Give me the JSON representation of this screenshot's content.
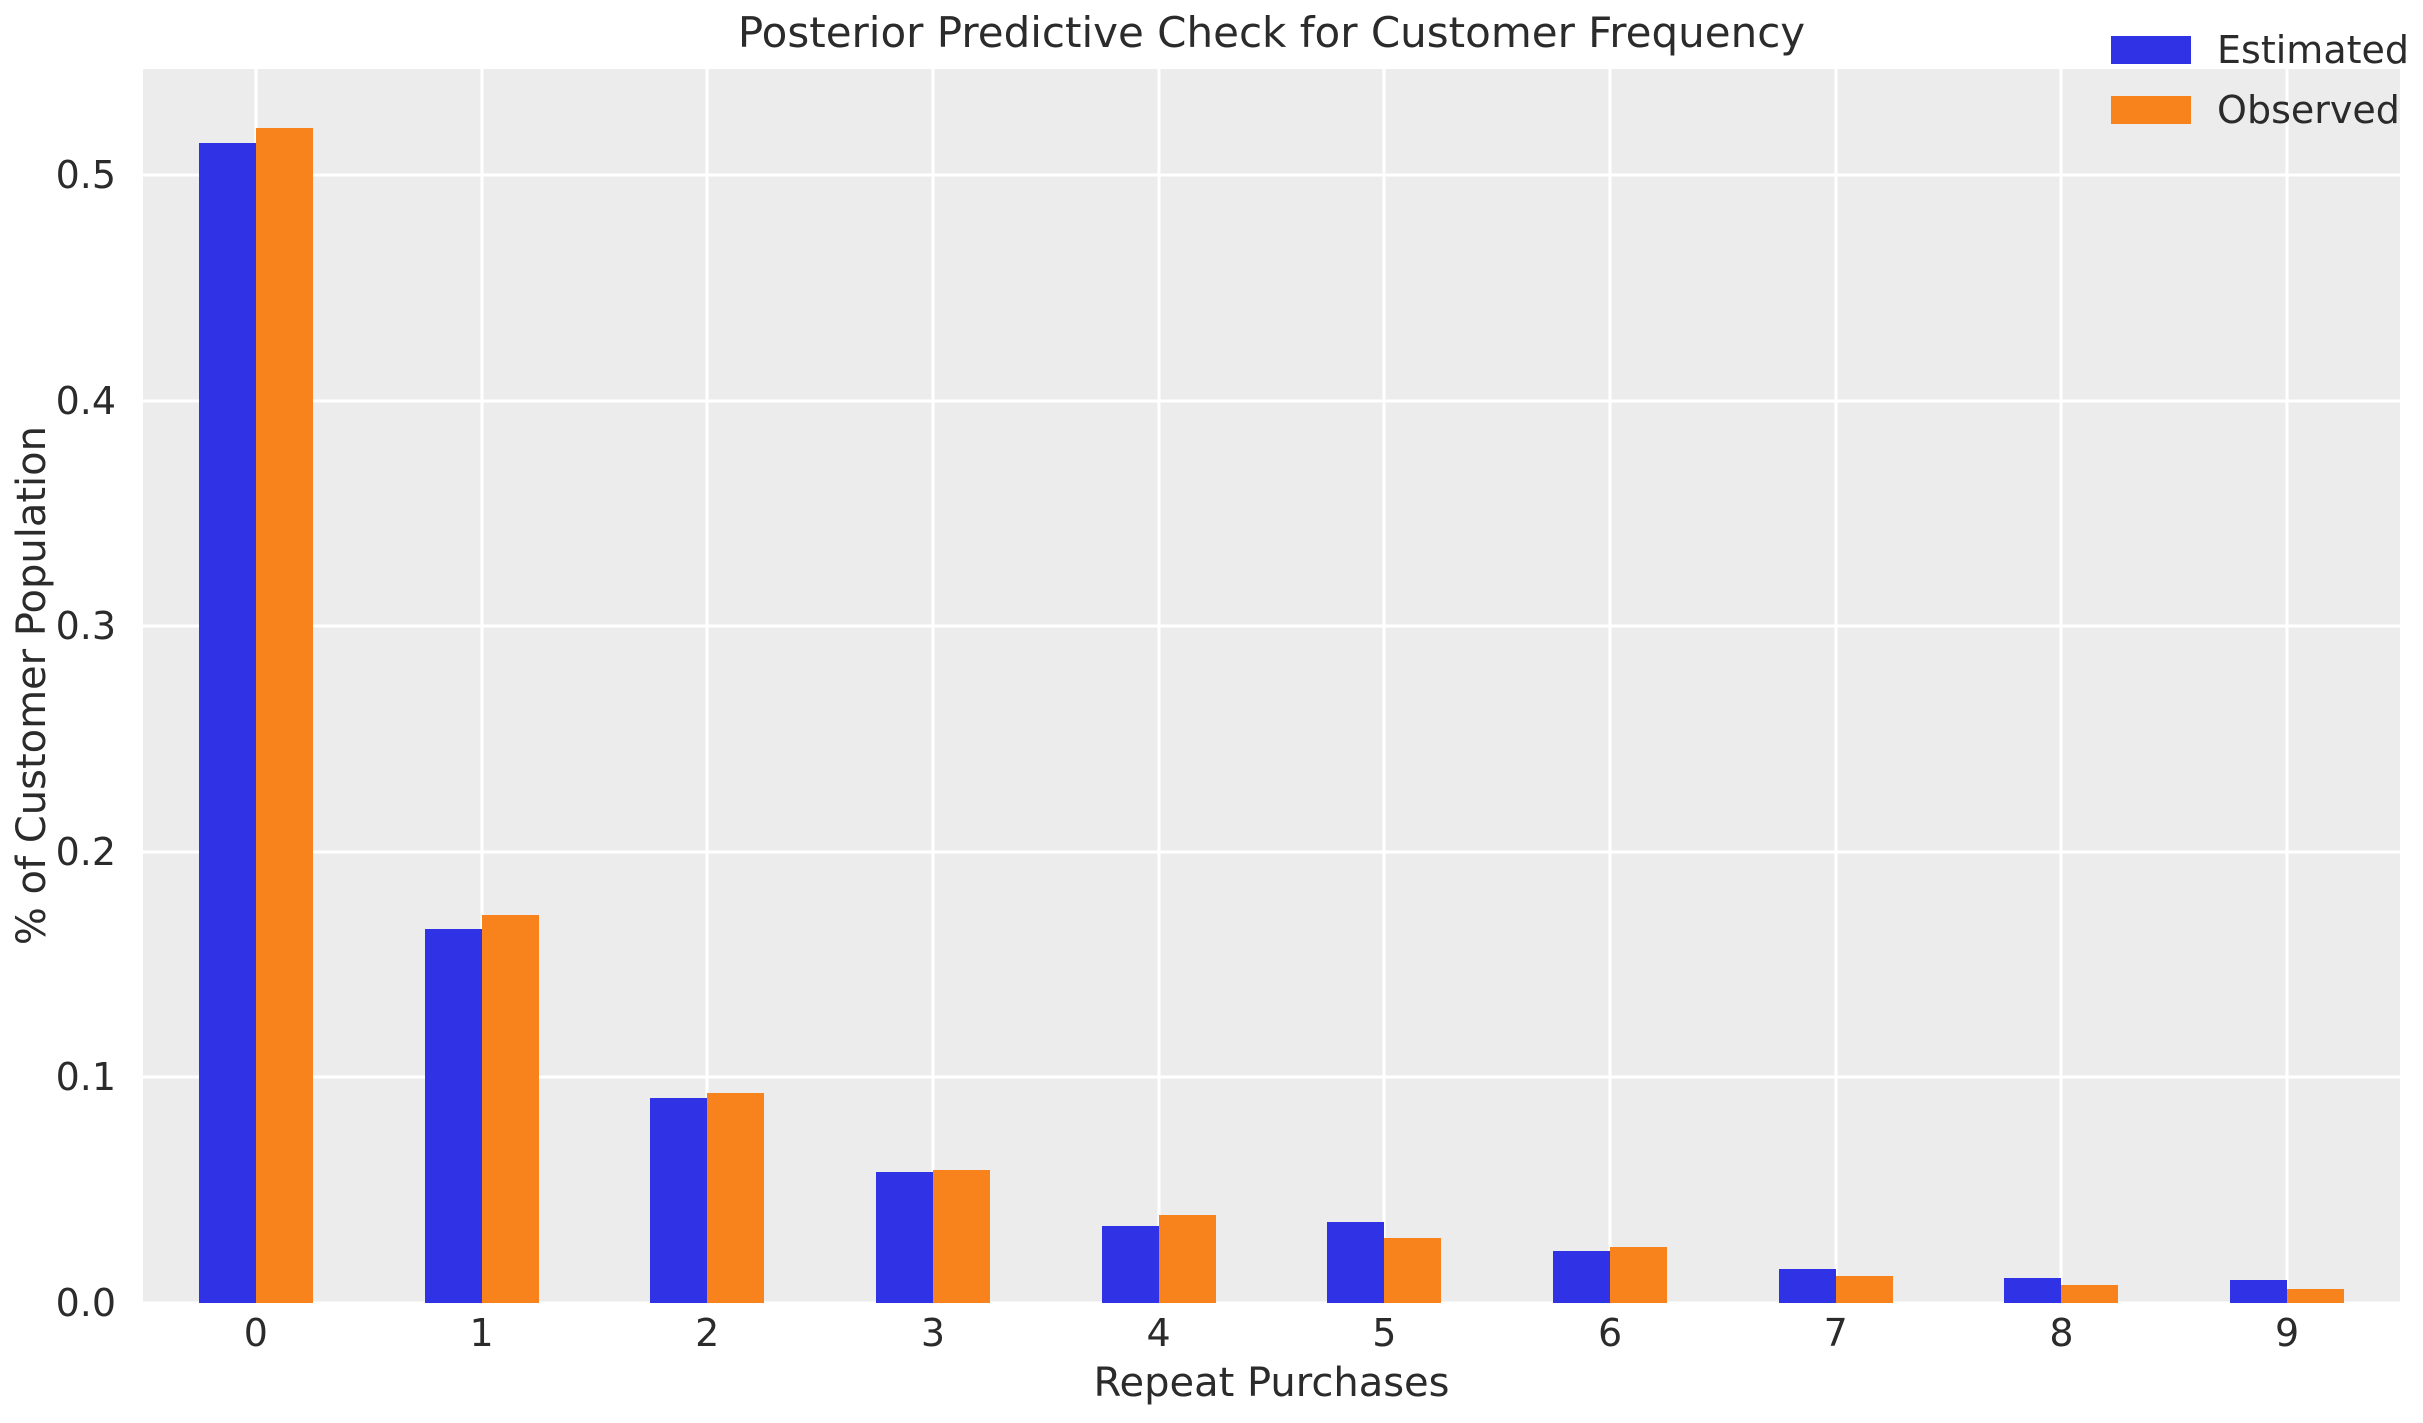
{
  "chart_data": {
    "type": "bar",
    "title": "Posterior Predictive Check for Customer Frequency",
    "xlabel": "Repeat Purchases",
    "ylabel": "% of Customer Population",
    "categories": [
      "0",
      "1",
      "2",
      "3",
      "4",
      "5",
      "6",
      "7",
      "8",
      "9"
    ],
    "series": [
      {
        "name": "Estimated",
        "color": "#3032e6",
        "values": [
          0.514,
          0.166,
          0.091,
          0.058,
          0.034,
          0.036,
          0.023,
          0.015,
          0.011,
          0.01
        ]
      },
      {
        "name": "Observed",
        "color": "#f8821c",
        "values": [
          0.521,
          0.172,
          0.093,
          0.059,
          0.039,
          0.029,
          0.025,
          0.012,
          0.008,
          0.006
        ]
      }
    ],
    "ylim": [
      0,
      0.547
    ],
    "yticks": [
      0.0,
      0.1,
      0.2,
      0.3,
      0.4,
      0.5
    ],
    "ytick_labels": [
      "0.0",
      "0.1",
      "0.2",
      "0.3",
      "0.4",
      "0.5"
    ],
    "grid": true,
    "legend_position": "upper right",
    "style": {
      "plot_background": "#ececec",
      "grid_color": "#ffffff",
      "text_color": "#2b2b2b",
      "figure_background": "#ffffff"
    }
  }
}
